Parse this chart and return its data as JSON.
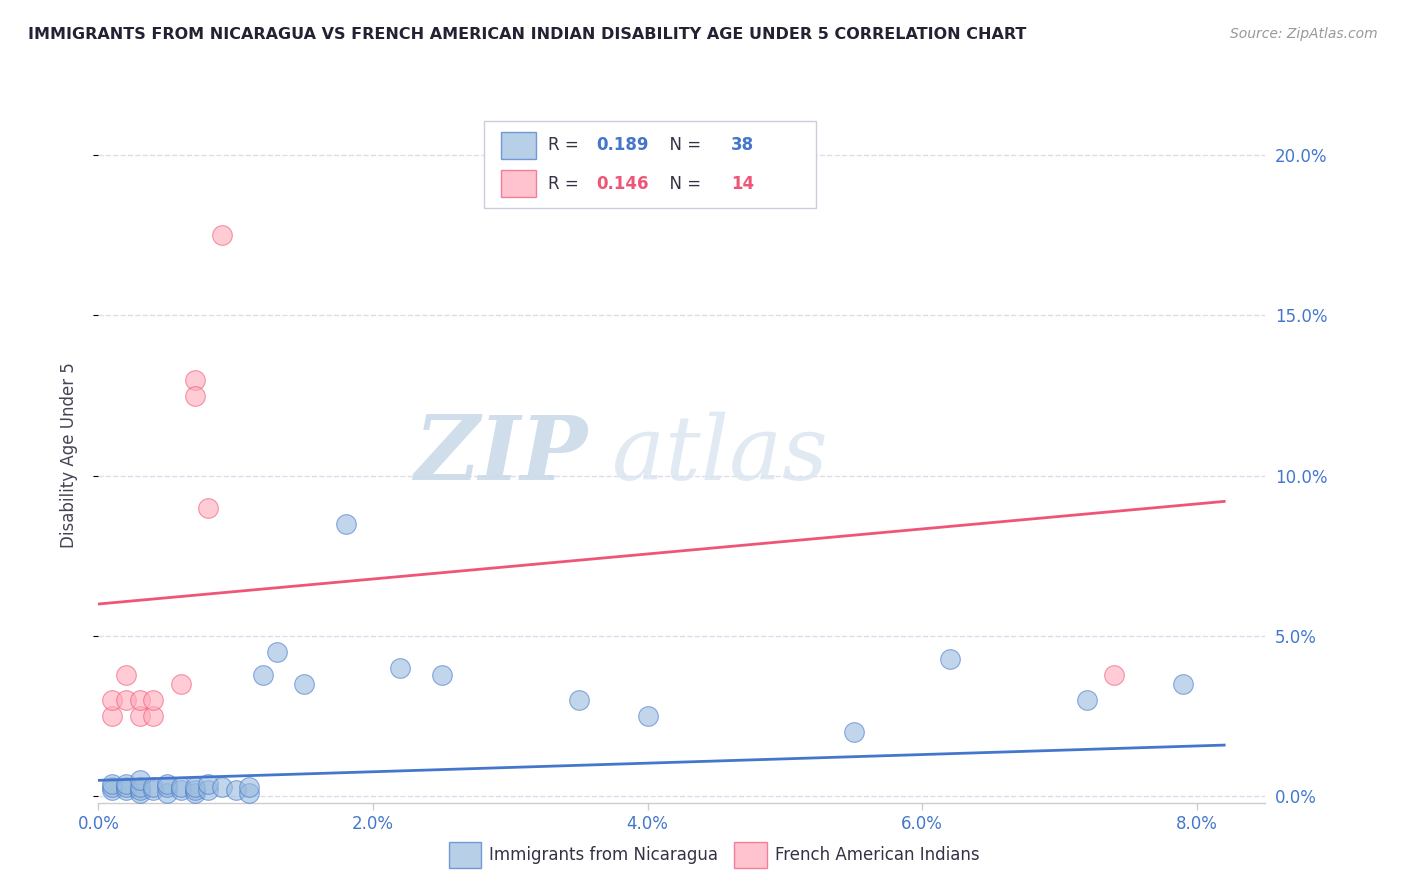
{
  "title": "IMMIGRANTS FROM NICARAGUA VS FRENCH AMERICAN INDIAN DISABILITY AGE UNDER 5 CORRELATION CHART",
  "source": "Source: ZipAtlas.com",
  "ylabel": "Disability Age Under 5",
  "xlim": [
    0.0,
    0.085
  ],
  "ylim": [
    -0.002,
    0.215
  ],
  "legend1_r": "0.189",
  "legend1_n": "38",
  "legend2_r": "0.146",
  "legend2_n": "14",
  "legend1_label": "Immigrants from Nicaragua",
  "legend2_label": "French American Indians",
  "color_blue": "#99BBDD",
  "color_pink": "#FFAABB",
  "color_blue_line": "#4477CC",
  "color_pink_line": "#EE5577",
  "color_axis_labels": "#4477CC",
  "color_title": "#222233",
  "color_source": "#999999",
  "blue_scatter_x": [
    0.001,
    0.001,
    0.001,
    0.002,
    0.002,
    0.002,
    0.003,
    0.003,
    0.003,
    0.003,
    0.004,
    0.004,
    0.005,
    0.005,
    0.005,
    0.006,
    0.006,
    0.007,
    0.007,
    0.007,
    0.008,
    0.008,
    0.009,
    0.01,
    0.011,
    0.011,
    0.012,
    0.013,
    0.015,
    0.018,
    0.022,
    0.025,
    0.035,
    0.04,
    0.055,
    0.062,
    0.072,
    0.079
  ],
  "blue_scatter_y": [
    0.002,
    0.003,
    0.004,
    0.002,
    0.003,
    0.004,
    0.001,
    0.002,
    0.003,
    0.005,
    0.002,
    0.003,
    0.001,
    0.003,
    0.004,
    0.002,
    0.003,
    0.001,
    0.002,
    0.003,
    0.002,
    0.004,
    0.003,
    0.002,
    0.001,
    0.003,
    0.038,
    0.045,
    0.035,
    0.085,
    0.04,
    0.038,
    0.03,
    0.025,
    0.02,
    0.043,
    0.03,
    0.035
  ],
  "pink_scatter_x": [
    0.001,
    0.001,
    0.002,
    0.002,
    0.003,
    0.003,
    0.004,
    0.004,
    0.006,
    0.007,
    0.007,
    0.008,
    0.009,
    0.074
  ],
  "pink_scatter_y": [
    0.025,
    0.03,
    0.03,
    0.038,
    0.025,
    0.03,
    0.025,
    0.03,
    0.035,
    0.13,
    0.125,
    0.09,
    0.175,
    0.038
  ],
  "blue_line_x": [
    0.0,
    0.082
  ],
  "blue_line_y": [
    0.005,
    0.016
  ],
  "pink_line_x": [
    0.0,
    0.082
  ],
  "pink_line_y": [
    0.06,
    0.092
  ],
  "watermark_zip": "ZIP",
  "watermark_atlas": "atlas",
  "background_color": "#FFFFFF",
  "grid_color": "#DDDDEE",
  "yticks": [
    0.0,
    0.05,
    0.1,
    0.15,
    0.2
  ],
  "ytick_labels": [
    "0.0%",
    "5.0%",
    "10.0%",
    "15.0%",
    "20.0%"
  ],
  "xticks": [
    0.0,
    0.02,
    0.04,
    0.06,
    0.08
  ],
  "xtick_labels": [
    "0.0%",
    "2.0%",
    "4.0%",
    "6.0%",
    "8.0%"
  ]
}
